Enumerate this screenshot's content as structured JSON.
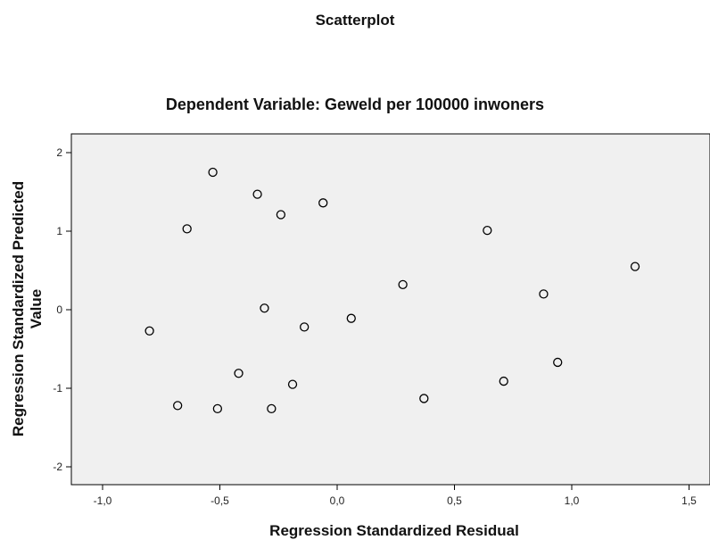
{
  "chart_data": {
    "type": "scatter",
    "title": "Scatterplot",
    "subtitle": "Dependent Variable: Geweld per 100000 inwoners",
    "xlabel": "Regression Standardized Residual",
    "ylabel": "Regression Standardized Predicted Value",
    "ylabel_lines": [
      "Regression Standardized Predicted",
      "Value"
    ],
    "xlim": [
      -1.25,
      1.6
    ],
    "ylim": [
      -2.2,
      2.2
    ],
    "xticks": [
      -1.0,
      -0.5,
      0.0,
      0.5,
      1.0,
      1.5
    ],
    "xtick_labels": [
      "-1,0",
      "-0,5",
      "0,0",
      "0,5",
      "1,0",
      "1,5"
    ],
    "yticks": [
      2,
      1,
      0,
      -1,
      -2
    ],
    "ytick_labels": [
      "2",
      "1",
      "0",
      "-1",
      "-2"
    ],
    "grid": false,
    "plot_background": "#f0f0f0",
    "marker_color": "#000000",
    "points": [
      {
        "x": -0.53,
        "y": 1.75
      },
      {
        "x": -0.34,
        "y": 1.47
      },
      {
        "x": -0.24,
        "y": 1.21
      },
      {
        "x": -0.06,
        "y": 1.36
      },
      {
        "x": -0.64,
        "y": 1.03
      },
      {
        "x": 0.64,
        "y": 1.01
      },
      {
        "x": 1.27,
        "y": 0.55
      },
      {
        "x": 0.28,
        "y": 0.32
      },
      {
        "x": 0.88,
        "y": 0.2
      },
      {
        "x": -0.31,
        "y": 0.02
      },
      {
        "x": 0.06,
        "y": -0.11
      },
      {
        "x": -0.14,
        "y": -0.22
      },
      {
        "x": -0.8,
        "y": -0.27
      },
      {
        "x": 0.94,
        "y": -0.67
      },
      {
        "x": -0.42,
        "y": -0.81
      },
      {
        "x": -0.19,
        "y": -0.95
      },
      {
        "x": 0.71,
        "y": -0.91
      },
      {
        "x": 0.37,
        "y": -1.13
      },
      {
        "x": -0.68,
        "y": -1.22
      },
      {
        "x": -0.51,
        "y": -1.26
      },
      {
        "x": -0.28,
        "y": -1.26
      }
    ]
  }
}
